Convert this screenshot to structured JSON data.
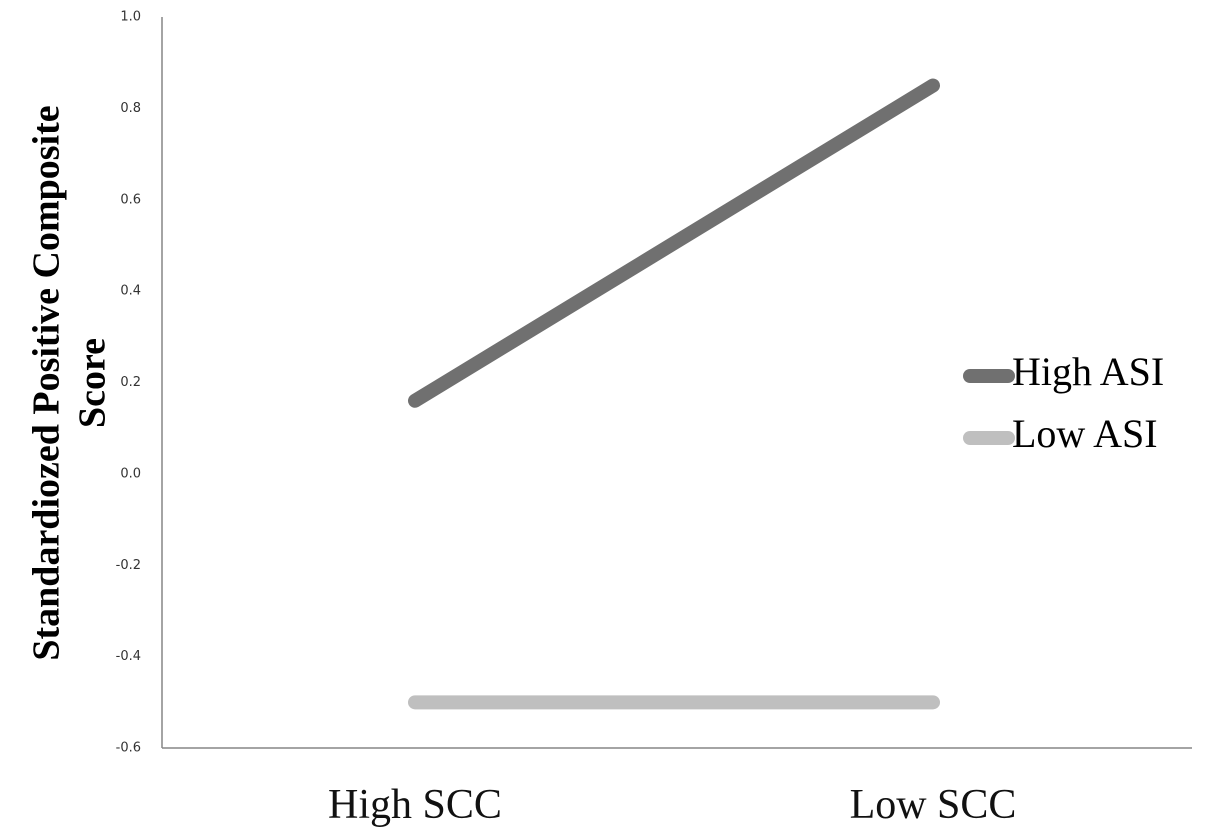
{
  "chart_data": {
    "type": "line",
    "title": "",
    "xlabel": "",
    "ylabel_lines": [
      "Standardiozed Positive Composite",
      "Score"
    ],
    "categories": [
      "High SCC",
      "Low SCC"
    ],
    "ylim": [
      -0.6,
      1.0
    ],
    "yticks": [
      1.0,
      0.8,
      0.6,
      0.4,
      0.2,
      0.0,
      -0.2,
      -0.4,
      -0.6
    ],
    "ytick_labels": [
      "1.0",
      "0.8",
      "0.6",
      "0.4",
      "0.2",
      "0.0",
      "-0.2",
      "-0.4",
      "-0.6"
    ],
    "grid": false,
    "legend_position": "right",
    "series": [
      {
        "name": "High ASI",
        "values": [
          0.16,
          0.85
        ],
        "color": "#707070"
      },
      {
        "name": "Low ASI",
        "values": [
          -0.5,
          -0.5
        ],
        "color": "#bfbfbf"
      }
    ]
  }
}
